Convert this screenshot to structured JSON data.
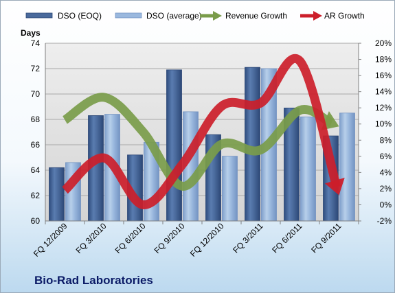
{
  "chart_data": {
    "type": "bar",
    "title": "",
    "company_label": "Bio-Rad Laboratories",
    "ylabel_left": "Days",
    "ylim_left": [
      60,
      74
    ],
    "yticks_left": [
      "60",
      "62",
      "64",
      "66",
      "68",
      "70",
      "72",
      "74"
    ],
    "ylim_right": [
      -2,
      20
    ],
    "yticks_right": [
      "-2%",
      "0%",
      "2%",
      "4%",
      "6%",
      "8%",
      "10%",
      "12%",
      "14%",
      "16%",
      "18%",
      "20%"
    ],
    "categories": [
      "FQ 12/2009",
      "FQ 3/2010",
      "FQ 6/2010",
      "FQ 9/2010",
      "FQ 12/2010",
      "FQ 3/2011",
      "FQ 6/2011",
      "FQ 9/2011"
    ],
    "grid": true,
    "legend_position": "top",
    "series": [
      {
        "name": "DSO (EOQ)",
        "kind": "bar",
        "axis": "left",
        "color": "#4a6a9c",
        "values": [
          64.2,
          68.3,
          65.2,
          71.9,
          66.8,
          72.1,
          68.9,
          66.7
        ]
      },
      {
        "name": "DSO (average)",
        "kind": "bar",
        "axis": "left",
        "color": "#9ab8de",
        "values": [
          64.6,
          68.4,
          66.2,
          68.6,
          65.1,
          72.0,
          68.2,
          68.5
        ]
      },
      {
        "name": "Revenue Growth",
        "kind": "arrow-line",
        "axis": "right",
        "color": "#7a9c4a",
        "values": [
          10.5,
          13.3,
          9.0,
          2.3,
          7.5,
          6.8,
          11.7,
          9.7
        ]
      },
      {
        "name": "AR Growth",
        "kind": "arrow-line",
        "axis": "right",
        "color": "#cc1e2a",
        "values": [
          1.8,
          5.8,
          0.0,
          5.0,
          12.2,
          12.6,
          17.8,
          1.2
        ]
      }
    ]
  }
}
